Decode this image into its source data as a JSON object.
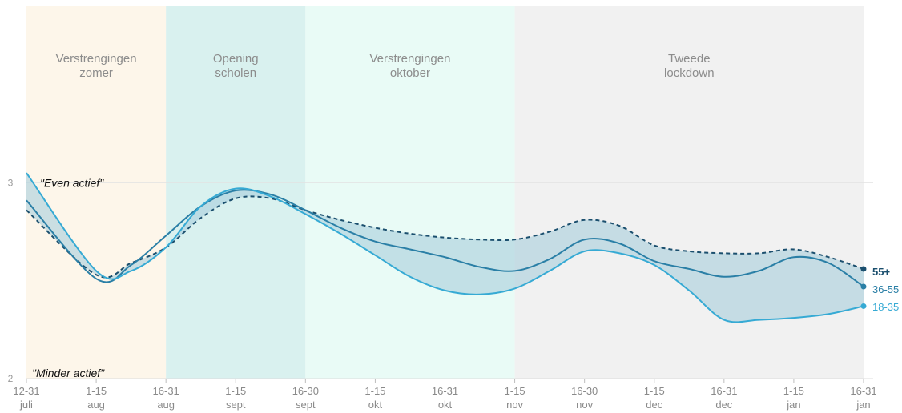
{
  "chart_data": {
    "type": "line",
    "x_axis": {
      "categories": [
        {
          "top": "12-31",
          "bottom": "juli"
        },
        {
          "top": "1-15",
          "bottom": "aug"
        },
        {
          "top": "16-31",
          "bottom": "aug"
        },
        {
          "top": "1-15",
          "bottom": "sept"
        },
        {
          "top": "16-30",
          "bottom": "sept"
        },
        {
          "top": "1-15",
          "bottom": "okt"
        },
        {
          "top": "16-31",
          "bottom": "okt"
        },
        {
          "top": "1-15",
          "bottom": "nov"
        },
        {
          "top": "16-30",
          "bottom": "nov"
        },
        {
          "top": "1-15",
          "bottom": "dec"
        },
        {
          "top": "16-31",
          "bottom": "dec"
        },
        {
          "top": "1-15",
          "bottom": "jan"
        },
        {
          "top": "16-31",
          "bottom": "jan"
        }
      ]
    },
    "y_axis": {
      "min": 2,
      "max": 3.9,
      "ticks": [
        "2",
        "3"
      ],
      "gridline_at": 3
    },
    "annotations": {
      "upper": "\"Even actief\"",
      "lower": "\"Minder actief\""
    },
    "phases": [
      {
        "line1": "Verstrengingen",
        "line2": "zomer",
        "start": 0,
        "end": 2,
        "color": "#fdf6ea"
      },
      {
        "line1": "Opening",
        "line2": "scholen",
        "start": 2,
        "end": 4,
        "color": "#d9f1ef"
      },
      {
        "line1": "Verstrengingen",
        "line2": "oktober",
        "start": 4,
        "end": 7,
        "color": "#e9fbf6"
      },
      {
        "line1": "Tweede",
        "line2": "lockdown",
        "start": 7,
        "end": 12,
        "color": "#f1f1f1"
      }
    ],
    "series": [
      {
        "name": "55+",
        "x": [
          0,
          1,
          1.5,
          2,
          2.5,
          3,
          3.5,
          4,
          4.5,
          5,
          5.5,
          6,
          6.5,
          7,
          7.5,
          8,
          8.5,
          9,
          9.5,
          10,
          10.5,
          11,
          11.5,
          12
        ],
        "values": [
          2.86,
          2.53,
          2.59,
          2.67,
          2.82,
          2.92,
          2.92,
          2.86,
          2.81,
          2.77,
          2.74,
          2.72,
          2.71,
          2.71,
          2.75,
          2.81,
          2.78,
          2.68,
          2.65,
          2.64,
          2.64,
          2.66,
          2.62,
          2.56
        ],
        "color": "#1b4f6e",
        "dashed": true
      },
      {
        "name": "36-55",
        "x": [
          0,
          1,
          1.5,
          2,
          2.5,
          3,
          3.5,
          4,
          4.5,
          5,
          5.5,
          6,
          6.5,
          7,
          7.5,
          8,
          8.5,
          9,
          9.5,
          10,
          10.5,
          11,
          11.5,
          12
        ],
        "values": [
          2.91,
          2.51,
          2.58,
          2.73,
          2.88,
          2.96,
          2.94,
          2.86,
          2.77,
          2.7,
          2.66,
          2.62,
          2.57,
          2.55,
          2.61,
          2.71,
          2.69,
          2.6,
          2.56,
          2.52,
          2.55,
          2.62,
          2.59,
          2.47
        ],
        "color": "#2a7fa6",
        "dashed": false
      },
      {
        "name": "18-35",
        "x": [
          0,
          1,
          1.5,
          2,
          2.5,
          3,
          3.5,
          4,
          4.5,
          5,
          5.5,
          6,
          6.5,
          7,
          7.5,
          8,
          8.5,
          9,
          9.5,
          10,
          10.5,
          11,
          11.5,
          12
        ],
        "values": [
          3.05,
          2.55,
          2.55,
          2.67,
          2.88,
          2.97,
          2.93,
          2.84,
          2.74,
          2.63,
          2.52,
          2.45,
          2.43,
          2.46,
          2.55,
          2.65,
          2.64,
          2.58,
          2.45,
          2.3,
          2.3,
          2.31,
          2.33,
          2.37
        ],
        "color": "#36aad4",
        "dashed": false
      }
    ],
    "band_fill": "#a9cfdc",
    "band_opacity": 0.6
  }
}
